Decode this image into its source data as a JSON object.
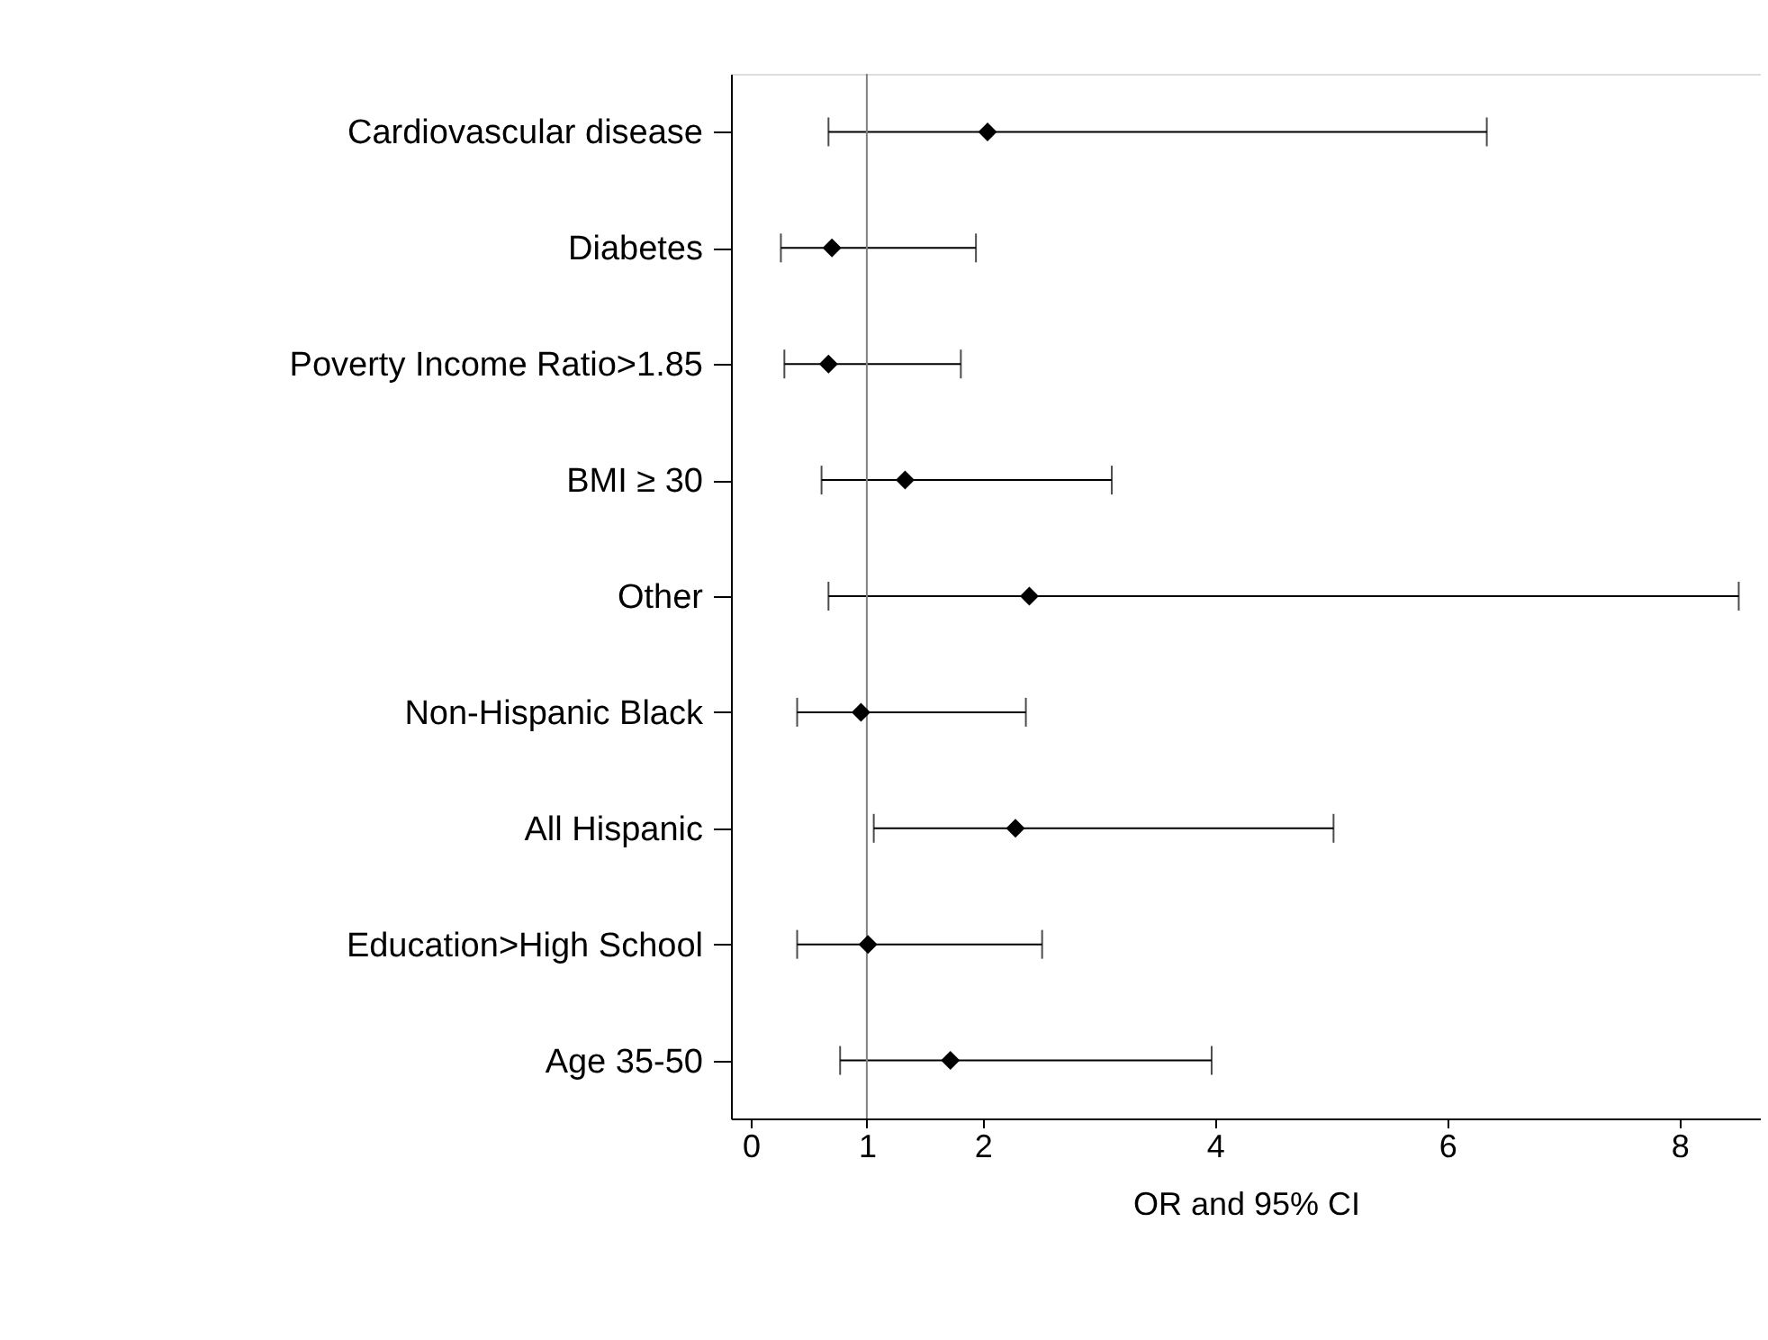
{
  "chart_data": {
    "type": "scatter",
    "orientation": "horizontal",
    "xlabel": "OR and 95% CI",
    "categories": [
      "Cardiovascular disease",
      "Diabetes",
      "Poverty Income Ratio>1.85",
      "BMI ≥ 30",
      "Other",
      "Non-Hispanic Black",
      "All Hispanic",
      "Education>High School",
      "Age 35-50"
    ],
    "values": [
      2.04,
      0.7,
      0.67,
      1.33,
      2.4,
      0.95,
      2.28,
      1.01,
      1.72
    ],
    "errors": [
      [
        0.67,
        6.34
      ],
      [
        0.26,
        1.94
      ],
      [
        0.29,
        1.81
      ],
      [
        0.61,
        3.11
      ],
      [
        0.67,
        8.51
      ],
      [
        0.4,
        2.37
      ],
      [
        1.06,
        5.02
      ],
      [
        0.4,
        2.51
      ],
      [
        0.77,
        3.97
      ]
    ],
    "color": "#000000",
    "marker": "diamond",
    "grid": false,
    "xlim": [
      -0.17,
      8.7
    ],
    "xticks": [
      0,
      1,
      2,
      4,
      6,
      8
    ],
    "ref_lines": [
      {
        "axis": "x",
        "value": 1,
        "color": "#808080"
      }
    ]
  }
}
